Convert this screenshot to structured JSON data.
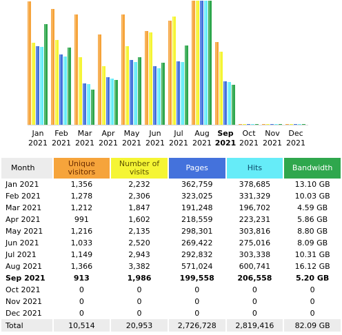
{
  "colors": {
    "unique_visitors": "#f6a43b",
    "visits": "#f5f534",
    "pages": "#4472dc",
    "hits": "#66ecf8",
    "bandwidth": "#2fa74d"
  },
  "headers": {
    "month": "Month",
    "unique_visitors": "Unique visitors",
    "visits": "Number of visits",
    "pages": "Pages",
    "hits": "Hits",
    "bandwidth": "Bandwidth"
  },
  "rows": [
    {
      "mon": "Jan",
      "year": "2021",
      "month": "Jan 2021",
      "unique": "1,356",
      "visits": "2,232",
      "pages": "362,759",
      "hits": "378,685",
      "bandwidth": "13.10 GB"
    },
    {
      "mon": "Feb",
      "year": "2021",
      "month": "Feb 2021",
      "unique": "1,278",
      "visits": "2,306",
      "pages": "323,025",
      "hits": "331,329",
      "bandwidth": "10.03 GB"
    },
    {
      "mon": "Mar",
      "year": "2021",
      "month": "Mar 2021",
      "unique": "1,212",
      "visits": "1,847",
      "pages": "191,248",
      "hits": "196,702",
      "bandwidth": "4.59 GB"
    },
    {
      "mon": "Apr",
      "year": "2021",
      "month": "Apr 2021",
      "unique": "991",
      "visits": "1,602",
      "pages": "218,559",
      "hits": "223,231",
      "bandwidth": "5.86 GB"
    },
    {
      "mon": "May",
      "year": "2021",
      "month": "May 2021",
      "unique": "1,216",
      "visits": "2,135",
      "pages": "298,301",
      "hits": "303,816",
      "bandwidth": "8.80 GB"
    },
    {
      "mon": "Jun",
      "year": "2021",
      "month": "Jun 2021",
      "unique": "1,033",
      "visits": "2,520",
      "pages": "269,422",
      "hits": "275,016",
      "bandwidth": "8.09 GB"
    },
    {
      "mon": "Jul",
      "year": "2021",
      "month": "Jul 2021",
      "unique": "1,149",
      "visits": "2,943",
      "pages": "292,832",
      "hits": "303,338",
      "bandwidth": "10.31 GB"
    },
    {
      "mon": "Aug",
      "year": "2021",
      "month": "Aug 2021",
      "unique": "1,366",
      "visits": "3,382",
      "pages": "571,024",
      "hits": "600,741",
      "bandwidth": "16.12 GB"
    },
    {
      "mon": "Sep",
      "year": "2021",
      "month": "Sep 2021",
      "unique": "913",
      "visits": "1,986",
      "pages": "199,558",
      "hits": "206,558",
      "bandwidth": "5.20 GB",
      "current": true
    },
    {
      "mon": "Oct",
      "year": "2021",
      "month": "Oct 2021",
      "unique": "0",
      "visits": "0",
      "pages": "0",
      "hits": "0",
      "bandwidth": "0"
    },
    {
      "mon": "Nov",
      "year": "2021",
      "month": "Nov 2021",
      "unique": "0",
      "visits": "0",
      "pages": "0",
      "hits": "0",
      "bandwidth": "0"
    },
    {
      "mon": "Dec",
      "year": "2021",
      "month": "Dec 2021",
      "unique": "0",
      "visits": "0",
      "pages": "0",
      "hits": "0",
      "bandwidth": "0"
    }
  ],
  "total": {
    "label": "Total",
    "unique": "10,514",
    "visits": "20,953",
    "pages": "2,726,728",
    "hits": "2,819,416",
    "bandwidth": "82.09 GB"
  },
  "chart_data": {
    "type": "bar",
    "categories": [
      "Jan 2021",
      "Feb 2021",
      "Mar 2021",
      "Apr 2021",
      "May 2021",
      "Jun 2021",
      "Jul 2021",
      "Aug 2021",
      "Sep 2021",
      "Oct 2021",
      "Nov 2021",
      "Dec 2021"
    ],
    "series": [
      {
        "name": "Unique visitors",
        "values": [
          1356,
          1278,
          1212,
          991,
          1216,
          1033,
          1149,
          1366,
          913,
          0,
          0,
          0
        ]
      },
      {
        "name": "Number of visits",
        "values": [
          2232,
          2306,
          1847,
          1602,
          2135,
          2520,
          2943,
          3382,
          1986,
          0,
          0,
          0
        ]
      },
      {
        "name": "Pages",
        "values": [
          362759,
          323025,
          191248,
          218559,
          298301,
          269422,
          292832,
          571024,
          199558,
          0,
          0,
          0
        ]
      },
      {
        "name": "Hits",
        "values": [
          378685,
          331329,
          196702,
          223231,
          303816,
          275016,
          303338,
          600741,
          206558,
          0,
          0,
          0
        ]
      },
      {
        "name": "Bandwidth",
        "values": [
          13.1,
          10.03,
          4.59,
          5.86,
          8.8,
          8.09,
          10.31,
          16.12,
          5.2,
          0,
          0,
          0
        ]
      }
    ],
    "scale_max": [
      1366,
      3382,
      571024,
      600741,
      16.12
    ],
    "current_month": "Sep 2021"
  }
}
